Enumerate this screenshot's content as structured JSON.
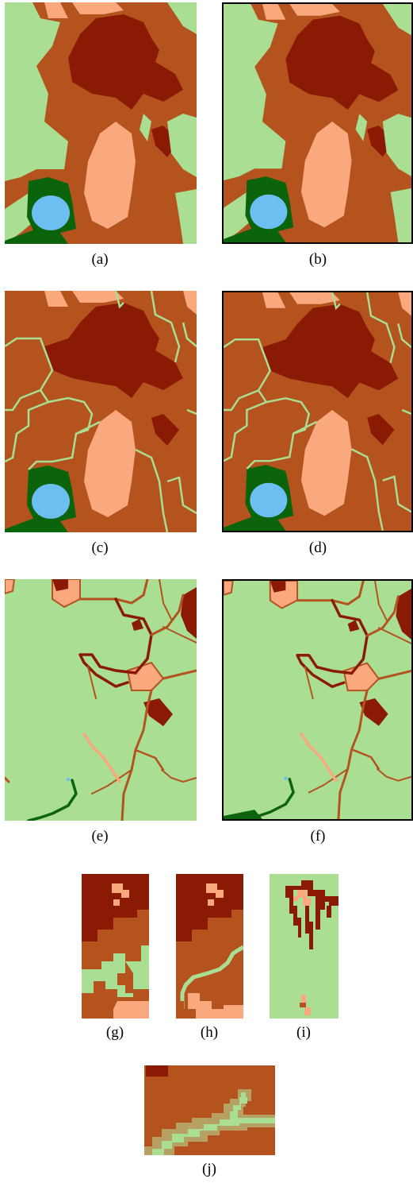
{
  "palette": {
    "light_green": "#A9DE93",
    "dark_green": "#0B640B",
    "water_blue": "#6CBFF0",
    "rust_brown": "#B4531E",
    "dark_red": "#8B1A05",
    "peach": "#F9A97D",
    "olive_band": "#B7A064"
  },
  "captions": {
    "a": "(a)",
    "b": "(b)",
    "c": "(c)",
    "d": "(d)",
    "e": "(e)",
    "f": "(f)",
    "g": "(g)",
    "h": "(h)",
    "i": "(i)",
    "j": "(j)"
  }
}
